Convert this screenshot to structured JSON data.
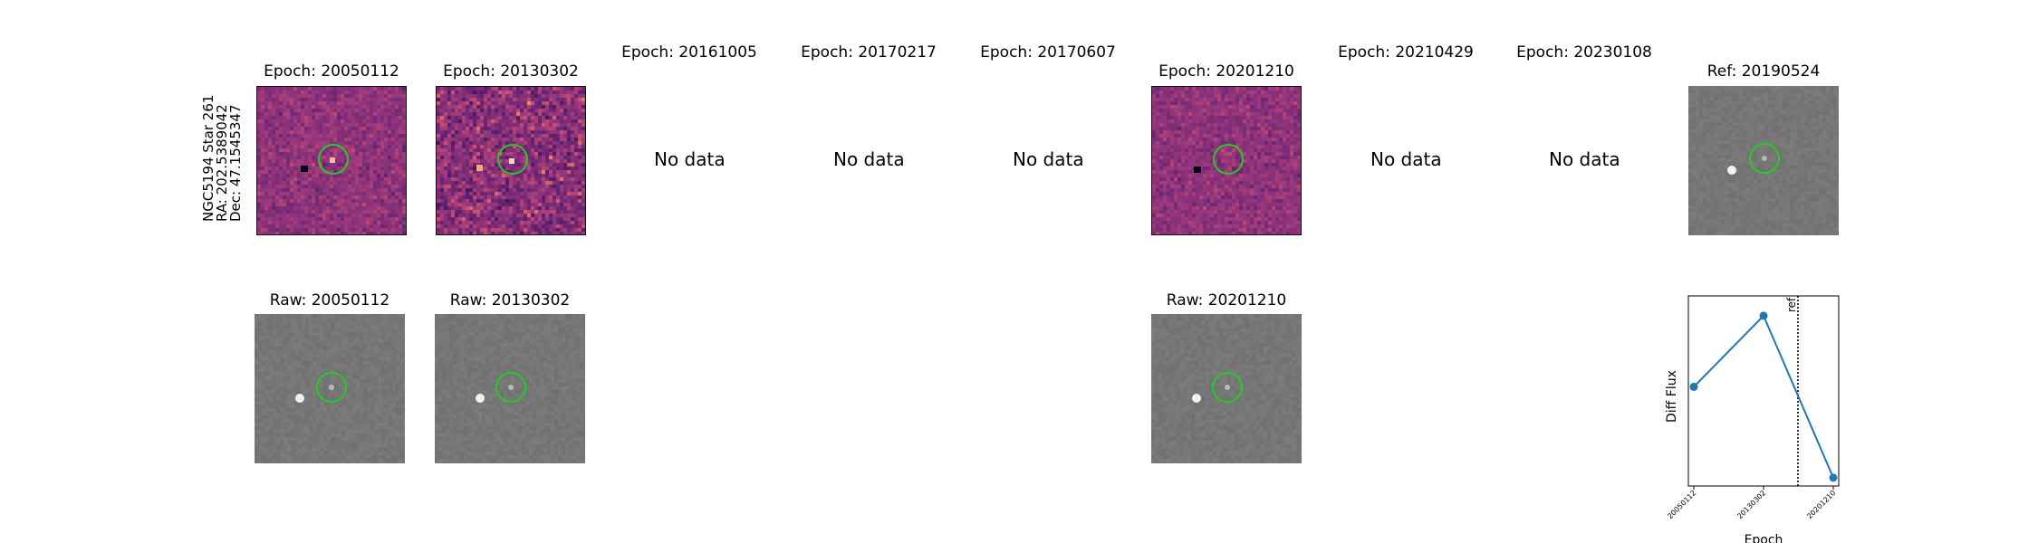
{
  "object_label": {
    "line1": "NGC5194 Star 261",
    "line2": "RA: 202.5389042",
    "line3": "Dec: 47.1545347"
  },
  "no_data_text": "No data",
  "top_row": [
    {
      "title": "Epoch: 20050112",
      "has_data": true
    },
    {
      "title": "Epoch: 20130302",
      "has_data": true
    },
    {
      "title": "Epoch: 20161005",
      "has_data": false
    },
    {
      "title": "Epoch: 20170217",
      "has_data": false
    },
    {
      "title": "Epoch: 20170607",
      "has_data": false
    },
    {
      "title": "Epoch: 20201210",
      "has_data": true
    },
    {
      "title": "Epoch: 20210429",
      "has_data": false
    },
    {
      "title": "Epoch: 20230108",
      "has_data": false
    },
    {
      "title": "Ref: 20190524",
      "has_data": true
    }
  ],
  "bottom_row": [
    {
      "title": "Raw: 20050112"
    },
    {
      "title": "Raw: 20130302"
    },
    {
      "title": "Raw: 20201210"
    }
  ],
  "colors": {
    "circle": "#22cc22",
    "line": "#1f77b4",
    "gray_bg": "#7c7c7c"
  },
  "chart_data": {
    "type": "line",
    "xlabel": "Epoch",
    "ylabel": "Diff Flux",
    "x": [
      "20050112",
      "20130302",
      "20201210"
    ],
    "values": [
      0.55,
      0.98,
      0.0
    ],
    "ylim": [
      -0.05,
      1.1
    ],
    "reference_line": {
      "label": "ref",
      "x_position": "between 20130302 and 20201210",
      "style": "dotted"
    },
    "y_ticks": "none",
    "grid": false
  }
}
